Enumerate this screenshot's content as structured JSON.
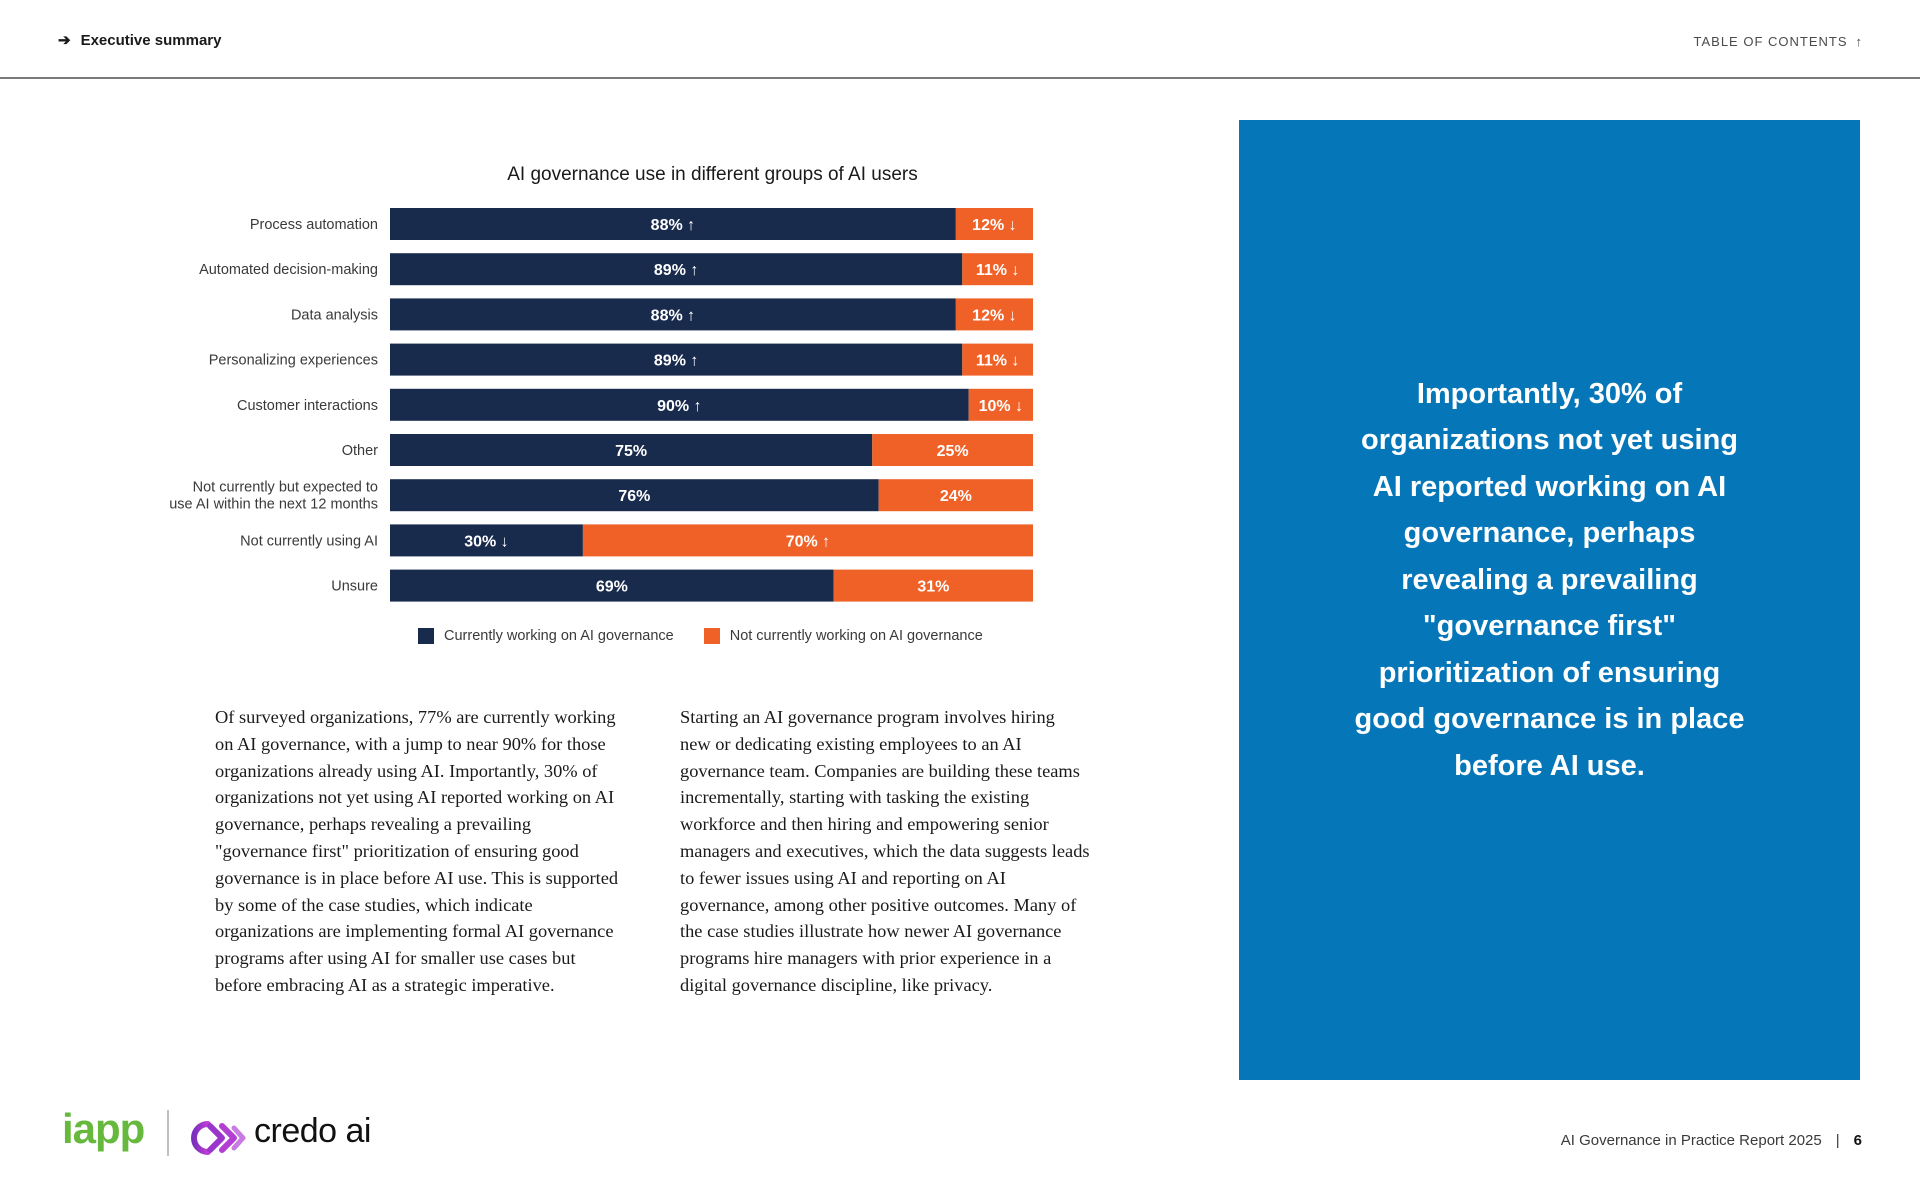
{
  "header": {
    "breadcrumb": "Executive summary",
    "breadcrumb_arrow": "➔",
    "toc_label": "TABLE OF CONTENTS",
    "toc_arrow": "↑"
  },
  "chart_data": {
    "type": "bar",
    "orientation": "horizontal",
    "stacked": true,
    "percent_stacked": true,
    "title": "AI governance use in different groups of AI users",
    "categories": [
      [
        "Process automation"
      ],
      [
        "Automated decision-making"
      ],
      [
        "Data analysis"
      ],
      [
        "Personalizing experiences"
      ],
      [
        "Customer interactions"
      ],
      [
        "Other"
      ],
      [
        "Not currently but expected to",
        "use AI within the next 12 months"
      ],
      [
        "Not currently using AI"
      ],
      [
        "Unsure"
      ]
    ],
    "series": [
      {
        "name": "Currently working on AI governance",
        "color": "#182b4d",
        "values": [
          88,
          89,
          88,
          89,
          90,
          75,
          76,
          30,
          69
        ],
        "labels": [
          "88% ↑",
          "89% ↑",
          "88% ↑",
          "89% ↑",
          "90% ↑",
          "75%",
          "76%",
          "30% ↓",
          "69%"
        ]
      },
      {
        "name": "Not currently working on AI governance",
        "color": "#f06127",
        "values": [
          12,
          11,
          12,
          11,
          10,
          25,
          24,
          70,
          31
        ],
        "labels": [
          "12% ↓",
          "11% ↓",
          "12% ↓",
          "11% ↓",
          "10% ↓",
          "25%",
          "24%",
          "70% ↑",
          "31%"
        ]
      }
    ],
    "xlim": [
      0,
      100
    ],
    "grid": false,
    "legend": "bottom"
  },
  "body": {
    "left_paragraph": "Of surveyed organizations, 77% are currently working on AI governance, with a jump to near 90% for those organizations already using AI. Importantly, 30% of organizations not yet using AI reported working on AI governance, perhaps revealing a prevailing \"governance first\" prioritization of ensuring good governance is in place before AI use. This is supported by some of the case studies, which indicate organizations are implementing formal AI governance programs after using AI for smaller use cases but before embracing AI as a strategic imperative.",
    "right_paragraph": "Starting an AI governance program involves hiring new or dedicating existing employees to an AI governance team. Companies are building these teams incrementally, starting with tasking the existing workforce and then hiring and empowering senior managers and executives, which the data suggests leads to fewer issues using AI and reporting on AI governance, among other positive outcomes. Many of the case studies illustrate how newer AI governance programs hire managers with prior experience in a digital governance discipline, like privacy."
  },
  "quote": {
    "text": "Importantly, 30% of organizations not yet using AI reported working on AI governance, perhaps revealing a prevailing \"governance first\" prioritization of ensuring good governance is in place before AI use."
  },
  "footer": {
    "logo_iapp": "iapp",
    "logo_credo": "credo ai",
    "report_title": "AI Governance in Practice Report 2025",
    "separator": "|",
    "page_number": "6"
  },
  "colors": {
    "navy": "#182b4d",
    "orange": "#f06127",
    "quote_blue": "#0576b8",
    "iapp_green": "#67b93e"
  }
}
